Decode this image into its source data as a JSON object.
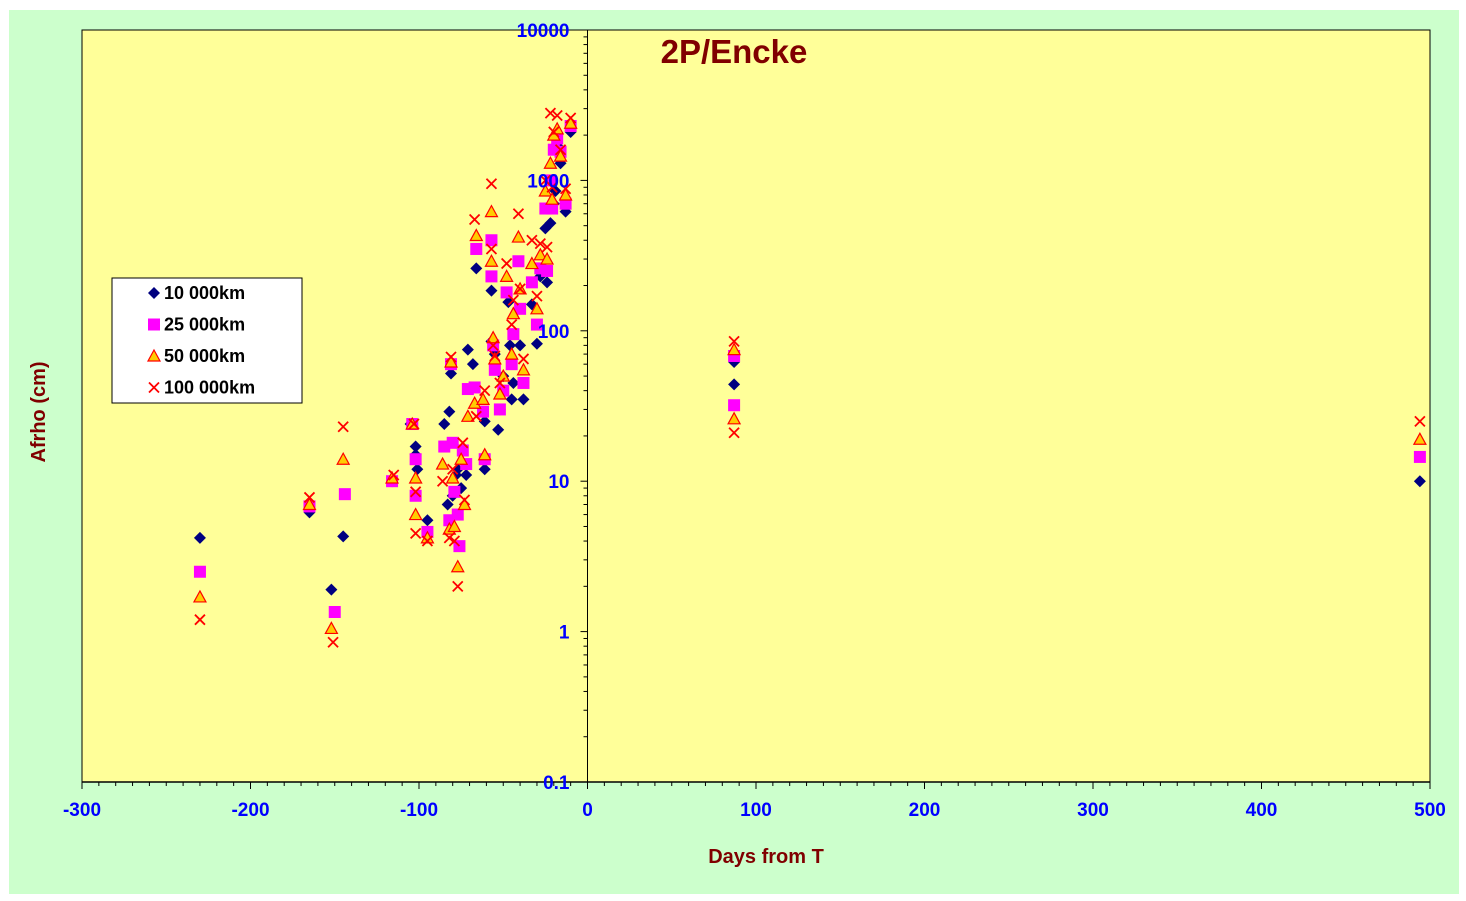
{
  "chart_data": {
    "type": "scatter",
    "title": "2P/Encke",
    "xlabel": "Days from T",
    "ylabel": "Afrho (cm)",
    "xlim": [
      -300,
      500
    ],
    "ylim": [
      0.1,
      10000
    ],
    "yscale": "log",
    "x_ticks": [
      -300,
      -200,
      -100,
      0,
      100,
      200,
      300,
      400,
      500
    ],
    "x_tick_labels": [
      "-300",
      "-200",
      "-100",
      "0",
      "100",
      "200",
      "300",
      "400",
      "500"
    ],
    "y_ticks": [
      0.1,
      1,
      10,
      100,
      1000,
      10000
    ],
    "y_tick_labels": [
      "0.1",
      "1",
      "10",
      "100",
      "1000",
      "10000"
    ],
    "grid": false,
    "legend_position": "left",
    "colors": {
      "plot_background": "#ffff99",
      "chart_background": "#ccffcc",
      "tick_labels": "#0000ff",
      "titles": "#800000"
    },
    "series": [
      {
        "name": "10 000km",
        "marker": "diamond",
        "color": "#000080",
        "points": [
          [
            -230,
            4.2
          ],
          [
            -165,
            6.2
          ],
          [
            -152,
            1.9
          ],
          [
            -145,
            4.3
          ],
          [
            -116,
            10
          ],
          [
            -105,
            24
          ],
          [
            -102,
            17
          ],
          [
            -102,
            15
          ],
          [
            -101,
            12
          ],
          [
            -95,
            5.5
          ],
          [
            -85,
            24
          ],
          [
            -83,
            7
          ],
          [
            -82,
            29
          ],
          [
            -81,
            52
          ],
          [
            -80,
            8
          ],
          [
            -78,
            11
          ],
          [
            -77,
            12
          ],
          [
            -75,
            9
          ],
          [
            -72,
            11
          ],
          [
            -71,
            75
          ],
          [
            -68,
            60
          ],
          [
            -66,
            260
          ],
          [
            -61,
            25
          ],
          [
            -61,
            12
          ],
          [
            -57,
            185
          ],
          [
            -57,
            85
          ],
          [
            -55,
            70
          ],
          [
            -53,
            22
          ],
          [
            -52,
            30
          ],
          [
            -50,
            50
          ],
          [
            -47,
            155
          ],
          [
            -46,
            80
          ],
          [
            -45,
            35
          ],
          [
            -44,
            45
          ],
          [
            -40,
            80
          ],
          [
            -38,
            35
          ],
          [
            -33,
            150
          ],
          [
            -30,
            82
          ],
          [
            -28,
            230
          ],
          [
            -25,
            480
          ],
          [
            -24,
            210
          ],
          [
            -22,
            520
          ],
          [
            -20,
            700
          ],
          [
            -19,
            850
          ],
          [
            -18,
            1700
          ],
          [
            -16,
            1300
          ],
          [
            -13,
            620
          ],
          [
            -10,
            2100
          ],
          [
            87,
            62
          ],
          [
            87,
            44
          ],
          [
            494,
            10
          ]
        ]
      },
      {
        "name": "25 000km",
        "marker": "square",
        "color": "#ff00ff",
        "points": [
          [
            -230,
            2.5
          ],
          [
            -165,
            6.8
          ],
          [
            -150,
            1.35
          ],
          [
            -144,
            8.2
          ],
          [
            -116,
            10
          ],
          [
            -104,
            24
          ],
          [
            -102,
            14
          ],
          [
            -102,
            8
          ],
          [
            -95,
            4.6
          ],
          [
            -85,
            17
          ],
          [
            -82,
            5.5
          ],
          [
            -81,
            60
          ],
          [
            -80,
            18
          ],
          [
            -79,
            8.5
          ],
          [
            -77,
            6
          ],
          [
            -76,
            3.7
          ],
          [
            -74,
            16
          ],
          [
            -72,
            13
          ],
          [
            -71,
            41
          ],
          [
            -67,
            42
          ],
          [
            -66,
            350
          ],
          [
            -62,
            29
          ],
          [
            -61,
            14
          ],
          [
            -57,
            400
          ],
          [
            -57,
            230
          ],
          [
            -56,
            80
          ],
          [
            -55,
            55
          ],
          [
            -52,
            30
          ],
          [
            -50,
            40
          ],
          [
            -48,
            180
          ],
          [
            -45,
            60
          ],
          [
            -44,
            95
          ],
          [
            -41,
            290
          ],
          [
            -40,
            140
          ],
          [
            -38,
            45
          ],
          [
            -33,
            210
          ],
          [
            -30,
            110
          ],
          [
            -28,
            260
          ],
          [
            -25,
            650
          ],
          [
            -24,
            250
          ],
          [
            -22,
            1000
          ],
          [
            -21,
            650
          ],
          [
            -20,
            1600
          ],
          [
            -18,
            1900
          ],
          [
            -16,
            1550
          ],
          [
            -13,
            700
          ],
          [
            -10,
            2300
          ],
          [
            87,
            68
          ],
          [
            87,
            32
          ],
          [
            494,
            14.5
          ]
        ]
      },
      {
        "name": "50 000km",
        "marker": "triangle",
        "color": "#ffcc00",
        "stroke": "#ff0000",
        "points": [
          [
            -230,
            1.7
          ],
          [
            -165,
            7
          ],
          [
            -152,
            1.05
          ],
          [
            -145,
            14
          ],
          [
            -116,
            10.5
          ],
          [
            -104,
            24
          ],
          [
            -102,
            10.5
          ],
          [
            -102,
            6
          ],
          [
            -95,
            4.2
          ],
          [
            -86,
            13
          ],
          [
            -82,
            4.8
          ],
          [
            -81,
            62
          ],
          [
            -80,
            10.5
          ],
          [
            -79,
            5
          ],
          [
            -77,
            2.7
          ],
          [
            -75,
            14
          ],
          [
            -73,
            7
          ],
          [
            -71,
            27
          ],
          [
            -67,
            33
          ],
          [
            -66,
            430
          ],
          [
            -62,
            35
          ],
          [
            -61,
            15
          ],
          [
            -57,
            620
          ],
          [
            -57,
            290
          ],
          [
            -56,
            90
          ],
          [
            -55,
            65
          ],
          [
            -52,
            38
          ],
          [
            -50,
            50
          ],
          [
            -48,
            230
          ],
          [
            -45,
            70
          ],
          [
            -44,
            130
          ],
          [
            -41,
            420
          ],
          [
            -40,
            190
          ],
          [
            -38,
            55
          ],
          [
            -33,
            280
          ],
          [
            -30,
            140
          ],
          [
            -28,
            320
          ],
          [
            -25,
            850
          ],
          [
            -24,
            300
          ],
          [
            -22,
            1300
          ],
          [
            -21,
            750
          ],
          [
            -20,
            2000
          ],
          [
            -18,
            2200
          ],
          [
            -16,
            1450
          ],
          [
            -13,
            800
          ],
          [
            -10,
            2400
          ],
          [
            87,
            75
          ],
          [
            87,
            26
          ],
          [
            494,
            19
          ]
        ]
      },
      {
        "name": "100 000km",
        "marker": "x",
        "color": "#ff0000",
        "points": [
          [
            -230,
            1.2
          ],
          [
            -165,
            7.8
          ],
          [
            -151,
            0.85
          ],
          [
            -145,
            23
          ],
          [
            -115,
            11
          ],
          [
            -103,
            24
          ],
          [
            -102,
            8.5
          ],
          [
            -102,
            4.5
          ],
          [
            -95,
            4
          ],
          [
            -86,
            10
          ],
          [
            -82,
            4.2
          ],
          [
            -81,
            67
          ],
          [
            -80,
            12
          ],
          [
            -79,
            4
          ],
          [
            -77,
            2
          ],
          [
            -74,
            18
          ],
          [
            -73,
            7.5
          ],
          [
            -67,
            550
          ],
          [
            -66,
            27
          ],
          [
            -61,
            40
          ],
          [
            -57,
            950
          ],
          [
            -57,
            350
          ],
          [
            -56,
            80
          ],
          [
            -55,
            68
          ],
          [
            -52,
            45
          ],
          [
            -48,
            280
          ],
          [
            -45,
            110
          ],
          [
            -44,
            160
          ],
          [
            -41,
            600
          ],
          [
            -40,
            190
          ],
          [
            -38,
            65
          ],
          [
            -33,
            400
          ],
          [
            -30,
            170
          ],
          [
            -28,
            380
          ],
          [
            -25,
            1000
          ],
          [
            -24,
            360
          ],
          [
            -22,
            2800
          ],
          [
            -21,
            900
          ],
          [
            -20,
            2100
          ],
          [
            -18,
            2700
          ],
          [
            -16,
            1600
          ],
          [
            -13,
            880
          ],
          [
            -10,
            2600
          ],
          [
            87,
            85
          ],
          [
            87,
            21
          ],
          [
            494,
            25
          ]
        ]
      }
    ]
  }
}
